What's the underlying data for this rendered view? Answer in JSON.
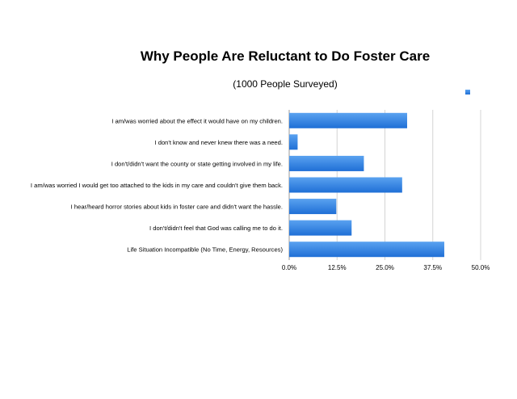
{
  "chart_data": {
    "type": "bar",
    "orientation": "horizontal",
    "title": "Why People Are Reluctant to Do Foster Care",
    "subtitle": "(1000 People Surveyed)",
    "categories": [
      "I am/was worried about the effect it would have on my children.",
      "I don't know and never knew there was a need.",
      "I don't/didn't want the county or state getting involved in my life.",
      "I am/was worried I would get too attached to the kids in my care and couldn't give them back.",
      "I hear/heard horror stories about kids in foster care and didn't want the hassle.",
      "I don't/didn't feel that God was calling me to do it.",
      "Life Situation Incompatible (No Time, Energy, Resources)"
    ],
    "values": [
      30.8,
      2.2,
      19.5,
      29.5,
      12.3,
      16.3,
      40.5
    ],
    "xlim": [
      0,
      50
    ],
    "xticks": [
      "0.0%",
      "12.5%",
      "25.0%",
      "37.5%",
      "50.0%"
    ],
    "grid": true,
    "legend": "top-right",
    "bar_color_top": "#5aa2f0",
    "bar_color_bottom": "#1f6fd6"
  }
}
